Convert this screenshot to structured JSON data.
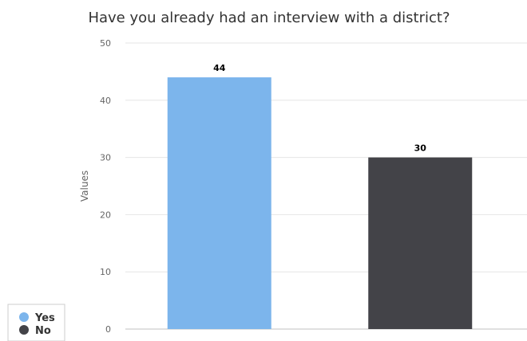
{
  "chart_data": {
    "type": "bar",
    "title": "Have you already had an interview with a district?",
    "xlabel": "",
    "ylabel": "Values",
    "categories": [
      "Yes",
      "No"
    ],
    "values": [
      44,
      30
    ],
    "colors": [
      "#7cb5ec",
      "#434348"
    ],
    "ylim": [
      0,
      50
    ],
    "yticks": [
      0,
      10,
      20,
      30,
      40,
      50
    ],
    "grid": true,
    "data_labels": true,
    "legend": {
      "position": "bottom-left",
      "items": [
        {
          "label": "Yes",
          "color": "#7cb5ec"
        },
        {
          "label": "No",
          "color": "#434348"
        }
      ]
    }
  }
}
